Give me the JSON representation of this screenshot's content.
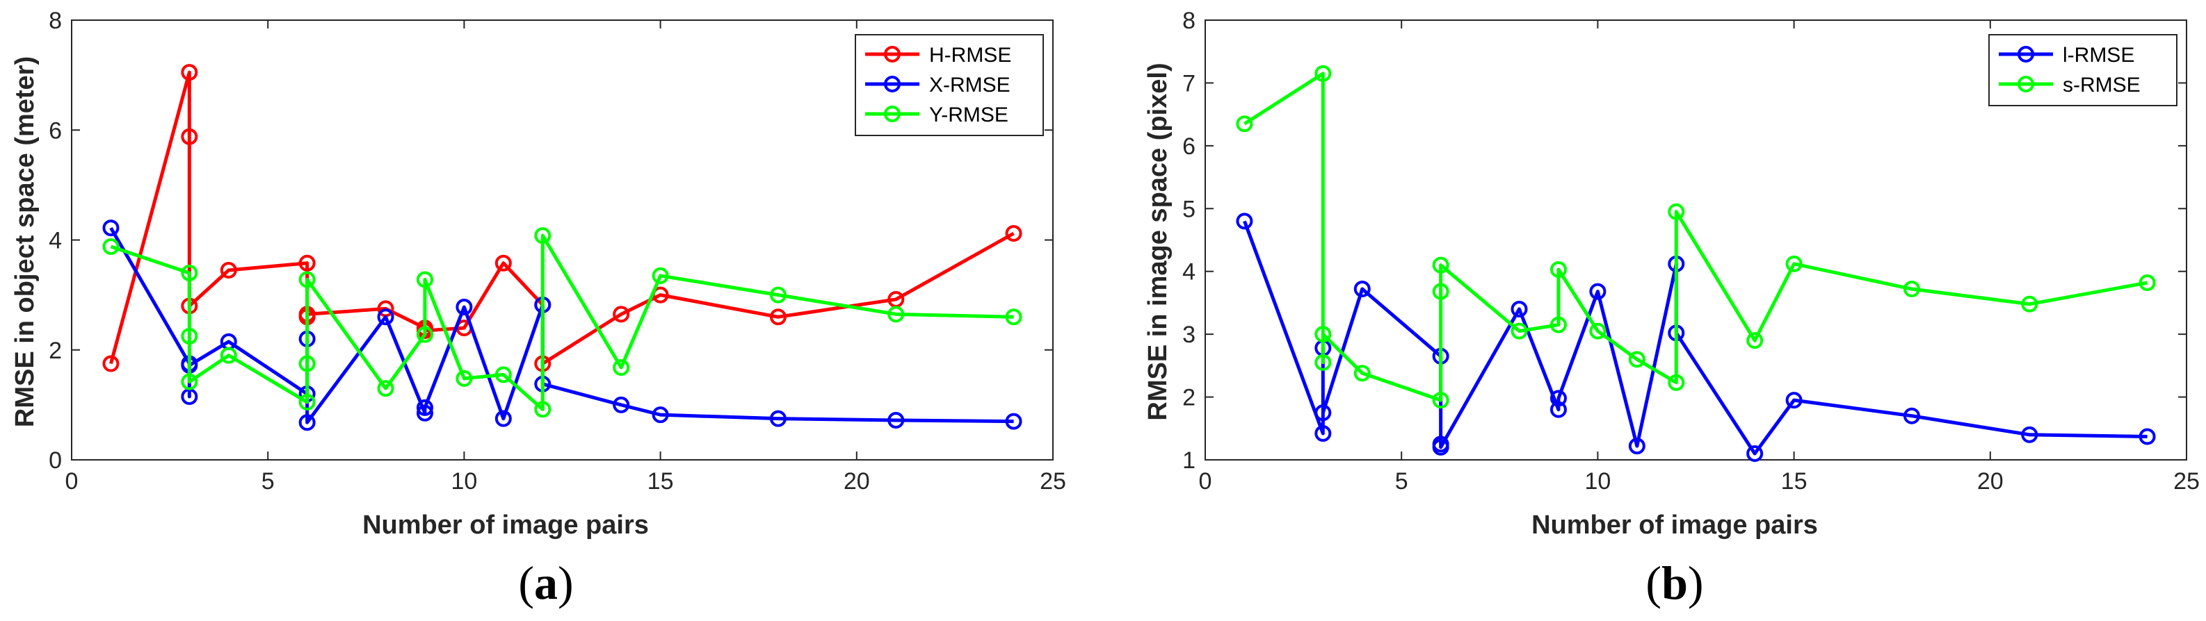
{
  "chart_data": [
    {
      "type": "line",
      "panel": "a",
      "caption_open": "(",
      "caption_letter": "a",
      "caption_close": ")",
      "xlabel": "Number of image pairs",
      "ylabel": "RMSE in object space (meter)",
      "xlim": [
        0,
        25
      ],
      "ylim": [
        0,
        8
      ],
      "xticks": [
        0,
        5,
        10,
        15,
        20,
        25
      ],
      "yticks": [
        0,
        2,
        4,
        6,
        8
      ],
      "legend_position": "top-right",
      "series": [
        {
          "name": "H-RMSE",
          "color": "#ff0000",
          "x": [
            1,
            3,
            3,
            3,
            4,
            6,
            6,
            6,
            8,
            9,
            9,
            10,
            11,
            12,
            12,
            14,
            15,
            18,
            21,
            24
          ],
          "y": [
            1.75,
            7.05,
            5.88,
            2.8,
            3.45,
            3.58,
            2.6,
            2.65,
            2.75,
            2.4,
            2.35,
            2.4,
            3.58,
            2.82,
            1.75,
            2.65,
            3.0,
            2.6,
            2.92,
            4.12
          ]
        },
        {
          "name": "X-RMSE",
          "color": "#0000ff",
          "x": [
            1,
            3,
            3,
            3,
            4,
            6,
            6,
            6,
            8,
            9,
            9,
            10,
            11,
            12,
            12,
            14,
            15,
            18,
            21,
            24
          ],
          "y": [
            4.22,
            1.75,
            1.15,
            1.72,
            2.15,
            1.2,
            2.2,
            0.68,
            2.6,
            0.85,
            0.95,
            2.78,
            0.75,
            2.82,
            1.38,
            1.0,
            0.82,
            0.75,
            0.72,
            0.7
          ]
        },
        {
          "name": "Y-RMSE",
          "color": "#00ff00",
          "x": [
            1,
            3,
            3,
            3,
            4,
            6,
            6,
            6,
            8,
            9,
            9,
            10,
            11,
            12,
            12,
            14,
            15,
            18,
            21,
            24
          ],
          "y": [
            3.88,
            3.4,
            2.25,
            1.42,
            1.9,
            1.05,
            1.75,
            3.28,
            1.3,
            2.28,
            3.28,
            1.48,
            1.55,
            0.92,
            4.08,
            1.68,
            3.35,
            3.0,
            2.65,
            2.6
          ]
        }
      ]
    },
    {
      "type": "line",
      "panel": "b",
      "caption_open": "(",
      "caption_letter": "b",
      "caption_close": ")",
      "xlabel": "Number of image pairs",
      "ylabel": "RMSE in image space (pixel)",
      "xlim": [
        0,
        25
      ],
      "ylim": [
        1,
        8
      ],
      "xticks": [
        0,
        5,
        10,
        15,
        20,
        25
      ],
      "yticks": [
        1,
        2,
        3,
        4,
        5,
        6,
        7,
        8
      ],
      "legend_position": "top-right",
      "series": [
        {
          "name": "l-RMSE",
          "color": "#0000ff",
          "x": [
            1,
            3,
            3,
            3,
            4,
            6,
            6,
            6,
            8,
            9,
            9,
            10,
            11,
            12,
            12,
            14,
            15,
            18,
            21,
            24
          ],
          "y": [
            4.8,
            1.42,
            2.78,
            1.75,
            3.72,
            2.65,
            1.25,
            1.2,
            3.4,
            1.8,
            1.98,
            3.68,
            1.22,
            4.12,
            3.02,
            1.1,
            1.95,
            1.7,
            1.4,
            1.37
          ]
        },
        {
          "name": "s-RMSE",
          "color": "#00ff00",
          "x": [
            1,
            3,
            3,
            3,
            4,
            6,
            6,
            6,
            8,
            9,
            9,
            10,
            11,
            12,
            12,
            14,
            15,
            18,
            21,
            24
          ],
          "y": [
            6.35,
            7.15,
            2.55,
            3.0,
            2.38,
            1.95,
            3.68,
            4.1,
            3.05,
            3.15,
            4.03,
            3.05,
            2.6,
            2.23,
            4.95,
            2.9,
            4.12,
            3.72,
            3.48,
            3.82
          ]
        }
      ]
    }
  ]
}
